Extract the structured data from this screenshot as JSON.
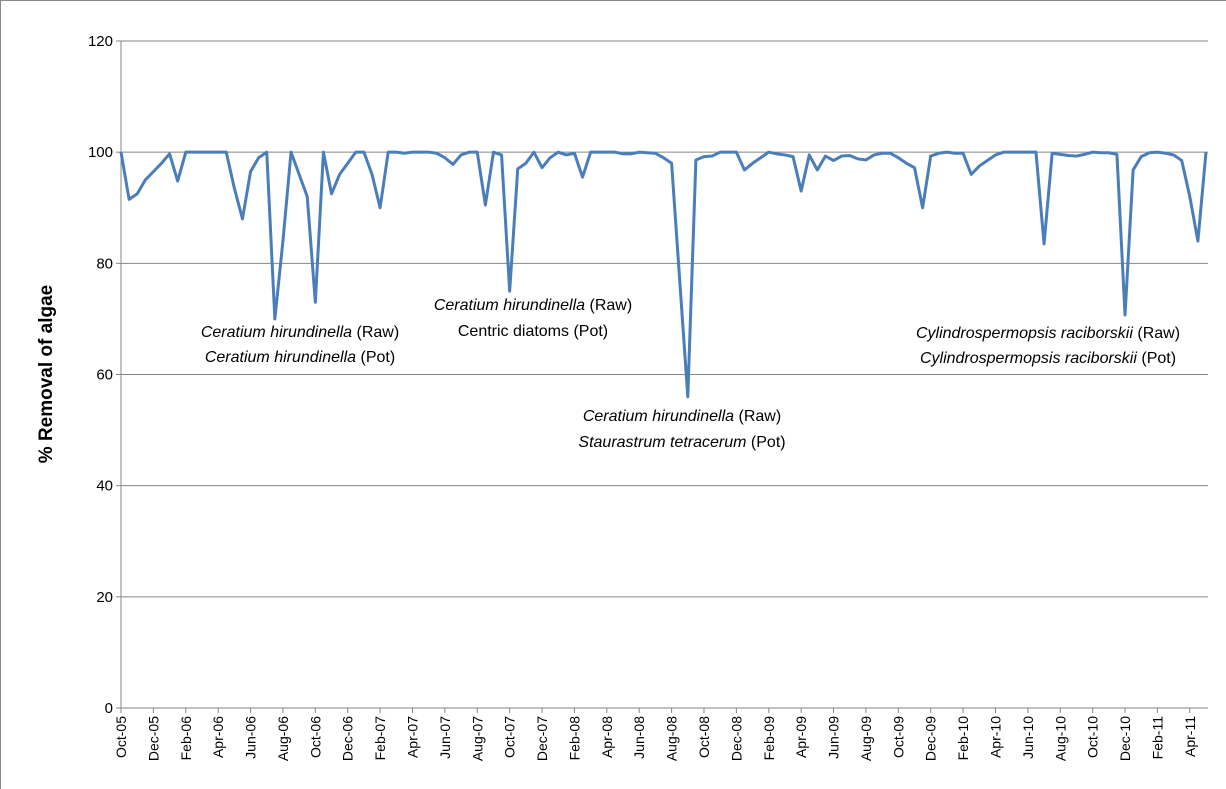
{
  "chart_data": {
    "type": "line",
    "y_label": "% Removal of algae",
    "categories": [
      "Oct-05",
      null,
      null,
      null,
      "Dec-05",
      null,
      null,
      null,
      "Feb-06",
      null,
      null,
      null,
      "Apr-06",
      null,
      null,
      null,
      "Jun-06",
      null,
      null,
      null,
      "Aug-06",
      null,
      null,
      null,
      "Oct-06",
      null,
      null,
      null,
      "Dec-06",
      null,
      null,
      null,
      "Feb-07",
      null,
      null,
      null,
      "Apr-07",
      null,
      null,
      null,
      "Jun-07",
      null,
      null,
      null,
      "Aug-07",
      null,
      null,
      null,
      "Oct-07",
      null,
      null,
      null,
      "Dec-07",
      null,
      null,
      null,
      "Feb-08",
      null,
      null,
      null,
      "Apr-08",
      null,
      null,
      null,
      "Jun-08",
      null,
      null,
      null,
      "Aug-08",
      null,
      null,
      null,
      "Oct-08",
      null,
      null,
      null,
      "Dec-08",
      null,
      null,
      null,
      "Feb-09",
      null,
      null,
      null,
      "Apr-09",
      null,
      null,
      null,
      "Jun-09",
      null,
      null,
      null,
      "Aug-09",
      null,
      null,
      null,
      "Oct-09",
      null,
      null,
      null,
      "Dec-09",
      null,
      null,
      null,
      "Feb-10",
      null,
      null,
      null,
      "Apr-10",
      null,
      null,
      null,
      "Jun-10",
      null,
      null,
      null,
      "Aug-10",
      null,
      null,
      null,
      "Oct-10",
      null,
      null,
      null,
      "Dec-10",
      null,
      null,
      null,
      "Feb-11",
      null,
      null,
      null,
      "Apr-11",
      null,
      null
    ],
    "values": [
      100,
      91.5,
      92.5,
      95,
      96.5,
      98,
      99.7,
      94.8,
      100,
      100,
      100,
      100,
      100,
      100,
      93.5,
      88,
      96.5,
      99,
      100,
      70,
      84,
      100,
      96,
      92,
      73,
      100,
      92.5,
      96,
      98,
      100,
      100,
      96,
      90,
      100,
      100,
      99.8,
      100,
      100,
      100,
      99.8,
      99,
      97.8,
      99.5,
      100,
      100,
      90.5,
      100,
      99.5,
      75,
      97,
      98,
      100,
      97.2,
      99,
      100,
      99.5,
      99.8,
      95.5,
      100,
      100,
      100,
      100,
      99.7,
      99.7,
      100,
      99.9,
      99.8,
      99,
      98,
      77,
      56,
      98.6,
      99.2,
      99.3,
      100,
      100,
      100,
      96.8,
      98,
      99,
      100,
      99.7,
      99.5,
      99.2,
      93,
      99.5,
      96.8,
      99.3,
      98.5,
      99.3,
      99.4,
      98.8,
      98.6,
      99.5,
      99.8,
      99.8,
      99,
      98,
      97.2,
      90,
      99.3,
      99.8,
      100,
      99.8,
      99.8,
      96,
      97.5,
      98.5,
      99.5,
      100,
      100,
      100,
      100,
      100,
      83.5,
      99.8,
      99.6,
      99.4,
      99.3,
      99.6,
      100,
      99.9,
      99.9,
      99.6,
      70.7,
      96.8,
      99.2,
      99.9,
      100,
      99.8,
      99.5,
      98.5,
      92,
      84,
      100
    ],
    "color": "#4a7ebb",
    "ylim": [
      0,
      120
    ],
    "yticks": [
      0,
      20,
      40,
      60,
      80,
      100,
      120
    ],
    "grid": true,
    "annotations": [
      [
        [
          "Ceratium hirundinella",
          "(Raw)"
        ],
        [
          "Ceratium hirundinella",
          "(Pot)"
        ]
      ],
      [
        [
          "Ceratium hirundinella",
          "(Raw)"
        ],
        [
          "Centric diatoms (Pot)"
        ]
      ],
      [
        [
          "Ceratium hirundinella",
          "(Raw)"
        ],
        [
          "Staurastrum tetracerum",
          "(Pot)"
        ]
      ],
      [
        [
          "Cylindrospermopsis raciborskii",
          "(Raw)"
        ],
        [
          "Cylindrospermopsis raciborskii",
          "(Pot)"
        ]
      ]
    ]
  }
}
